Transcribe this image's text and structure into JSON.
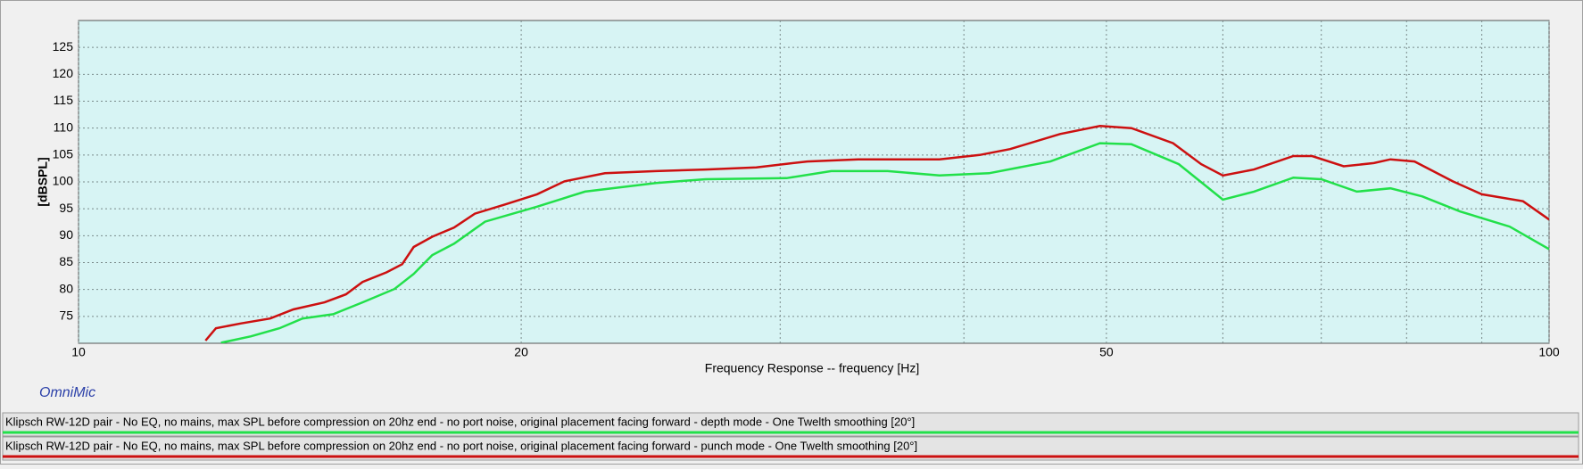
{
  "chart_data": {
    "type": "line",
    "brand": "OmniMic",
    "xlabel": "Frequency Response -- frequency [Hz]",
    "ylabel": "[dBSPL]",
    "xscale": "log",
    "xlim": [
      10,
      100
    ],
    "xticks": [
      10,
      20,
      50,
      100
    ],
    "xgrid_minor": [
      30,
      40,
      60,
      70,
      80,
      90
    ],
    "ylim": [
      70,
      130
    ],
    "yticks": [
      75,
      80,
      85,
      90,
      95,
      100,
      105,
      110,
      115,
      120,
      125
    ],
    "grid": true,
    "series": [
      {
        "name": "Klipsch RW-12D pair - No EQ, no mains, max SPL before compression on 20hz end - no port noise, original placement facing forward - depth mode - One Twelth smoothing [20°]",
        "color": "#22e04a",
        "x": [
          12.5,
          13.1,
          13.7,
          14.2,
          14.9,
          15.6,
          16.4,
          16.9,
          17.4,
          18.0,
          18.9,
          20.5,
          22.1,
          24.7,
          26.7,
          30.3,
          32.5,
          35.5,
          38.5,
          41.6,
          45.8,
          49.5,
          52.0,
          56.0,
          60.0,
          63.0,
          67.0,
          70.0,
          74.0,
          78.0,
          82.0,
          87.0,
          94.0,
          100.0
        ],
        "values": [
          70.1,
          71.3,
          72.8,
          74.6,
          75.4,
          77.6,
          80.1,
          82.9,
          86.4,
          88.5,
          92.6,
          95.4,
          98.2,
          99.8,
          100.5,
          100.7,
          102.0,
          102.0,
          101.2,
          101.6,
          103.8,
          107.2,
          107.0,
          103.3,
          96.7,
          98.2,
          100.8,
          100.5,
          98.2,
          98.8,
          97.3,
          94.5,
          91.7,
          87.5
        ]
      },
      {
        "name": "Klipsch RW-12D pair - No EQ, no mains, max SPL before compression on 20hz end - no port noise, original placement facing forward - punch mode - One Twelth smoothing [20°]",
        "color": "#cc1010",
        "x": [
          12.2,
          12.4,
          12.9,
          13.5,
          14.0,
          14.7,
          15.2,
          15.6,
          16.2,
          16.6,
          16.9,
          17.4,
          18.0,
          18.6,
          19.5,
          20.5,
          21.4,
          22.8,
          24.7,
          26.7,
          28.9,
          31.3,
          33.9,
          38.5,
          41.0,
          43.0,
          46.5,
          49.5,
          52.0,
          55.5,
          58.0,
          60.0,
          63.0,
          67.0,
          69.0,
          72.5,
          76.0,
          78.0,
          81.0,
          86.0,
          90.0,
          96.0,
          100.0
        ],
        "values": [
          70.5,
          72.8,
          73.7,
          74.6,
          76.3,
          77.6,
          79.1,
          81.4,
          83.2,
          84.7,
          87.9,
          89.8,
          91.5,
          94.1,
          95.8,
          97.7,
          100.1,
          101.6,
          102.0,
          102.3,
          102.7,
          103.8,
          104.2,
          104.2,
          105.0,
          106.1,
          108.9,
          110.4,
          110.0,
          107.2,
          103.3,
          101.2,
          102.3,
          104.8,
          104.8,
          102.9,
          103.5,
          104.2,
          103.8,
          100.1,
          97.7,
          96.4,
          93.0
        ]
      }
    ]
  }
}
